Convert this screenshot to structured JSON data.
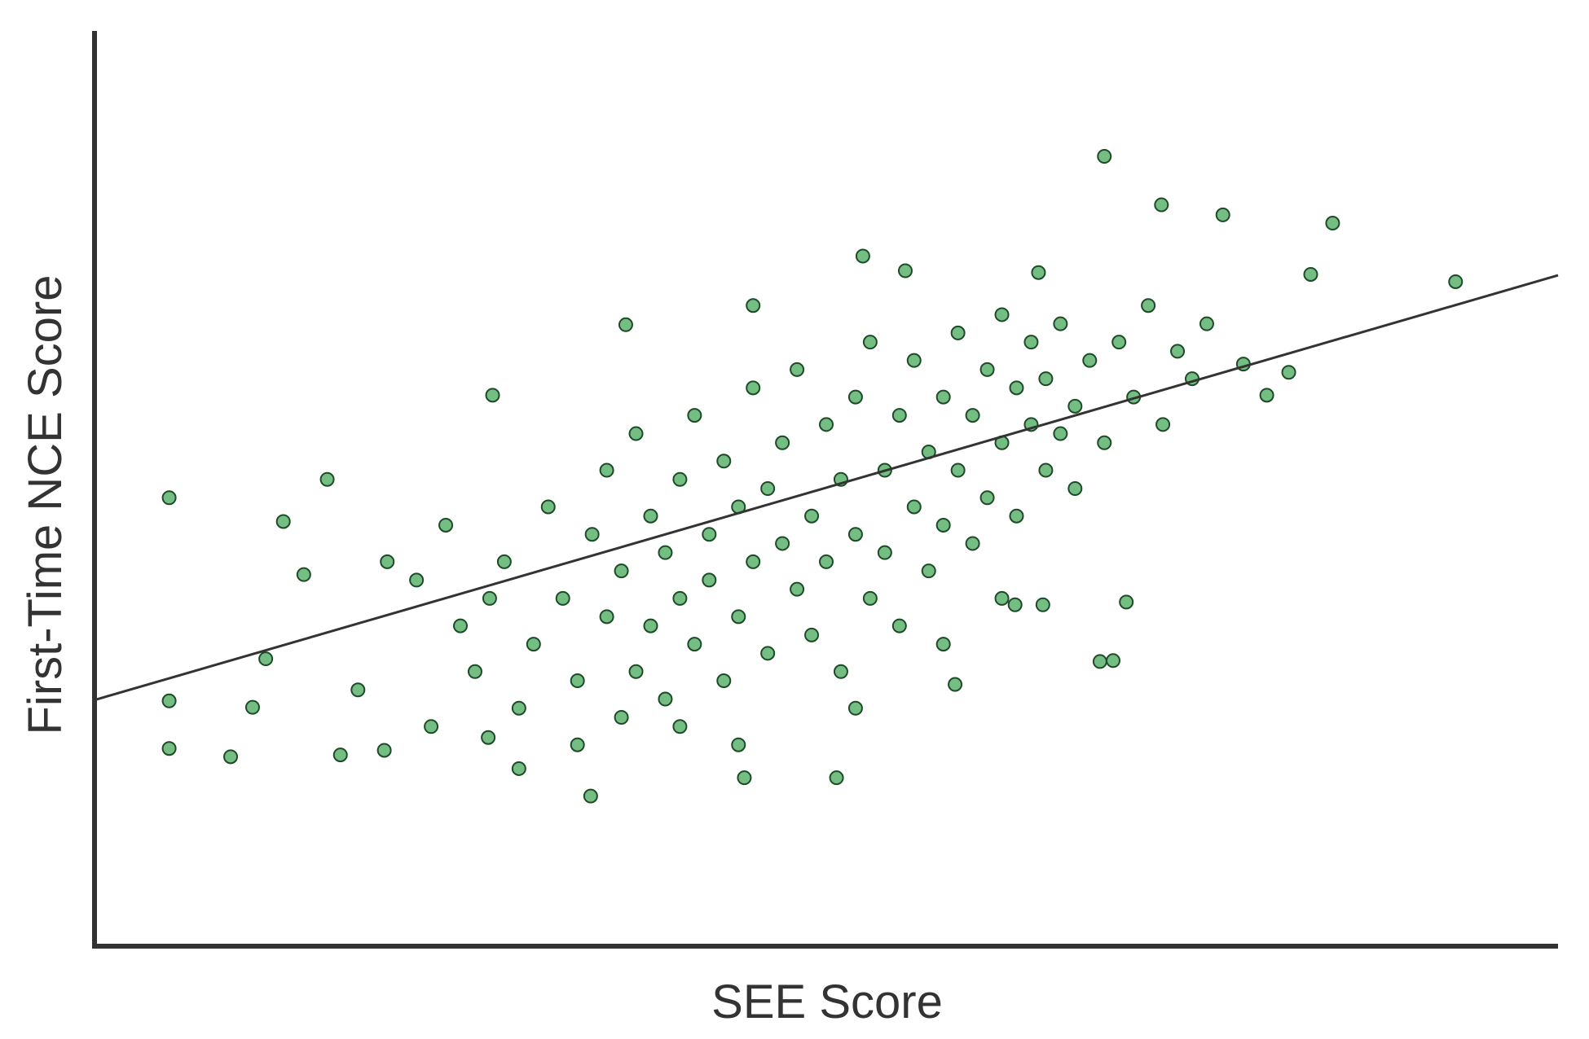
{
  "chart_data": {
    "type": "scatter",
    "x_label": "SEE Score",
    "y_label": "First-Time NCE Score",
    "xlim": [
      0,
      100
    ],
    "ylim": [
      0,
      100
    ],
    "color": "#6dbb7c",
    "edge_color": "#1e4a27",
    "line_color": "#333333",
    "x": [
      5.1,
      5.1,
      5.1,
      9.3,
      10.8,
      11.7,
      12.9,
      15.9,
      14.3,
      16.8,
      19.8,
      33.9,
      44.4,
      50.7,
      69.0,
      72.9,
      77.1,
      84.6,
      93.0,
      83.1,
      81.6,
      80.1,
      78.5,
      68.7,
      69.6,
      70.5,
      58.8,
      52.5,
      55.4,
      64.5,
      45.0,
      36.3,
      27.2,
      29.0,
      26.9,
      62.9,
      64.8,
      28,
      30,
      31,
      32,
      33,
      34,
      35,
      35,
      36,
      37,
      37,
      38,
      38,
      39,
      39,
      40,
      40,
      41,
      41,
      42,
      42,
      43,
      43,
      44,
      44,
      45,
      45,
      46,
      46,
      47,
      47,
      48,
      48,
      49,
      49,
      50,
      50,
      51,
      51,
      52,
      52,
      53,
      53,
      54,
      54,
      55,
      55,
      56,
      56,
      57,
      57,
      58,
      58,
      59,
      59,
      60,
      60,
      61,
      61,
      62,
      62,
      63,
      63,
      64,
      64,
      65,
      65,
      66,
      66,
      67,
      67,
      68,
      69,
      70,
      71,
      72,
      73,
      74,
      75,
      76,
      22,
      24,
      25,
      26,
      20,
      18,
      23,
      27,
      29,
      33,
      36,
      40,
      44,
      52,
      58,
      62
    ],
    "values": [
      49.0,
      26.8,
      21.6,
      20.7,
      26.1,
      31.4,
      46.4,
      51.0,
      40.6,
      20.9,
      21.4,
      16.4,
      18.4,
      18.4,
      86.3,
      81.0,
      79.9,
      79.0,
      72.6,
      73.4,
      62.7,
      60.2,
      63.6,
      31.1,
      31.2,
      37.6,
      28.6,
      75.4,
      73.8,
      73.6,
      70.0,
      67.9,
      60.2,
      19.4,
      22.8,
      37.3,
      37.3,
      42,
      33,
      48,
      38,
      29,
      45,
      52,
      36,
      41,
      30,
      56,
      47,
      35,
      43,
      27,
      51,
      38,
      58,
      33,
      45,
      40,
      53,
      29,
      48,
      36,
      61,
      42,
      50,
      32,
      55,
      44,
      39,
      63,
      47,
      34,
      57,
      42,
      51,
      30,
      60,
      45,
      38,
      66,
      52,
      43,
      58,
      35,
      48,
      64,
      54,
      41,
      60,
      46,
      67,
      52,
      44,
      58,
      63,
      49,
      55,
      69,
      47,
      61,
      57,
      66,
      52,
      62,
      68,
      56,
      59,
      50,
      64,
      55,
      66,
      60,
      70,
      57,
      65,
      62,
      68,
      40,
      46,
      35,
      30,
      42,
      28,
      24,
      38,
      26,
      22,
      25,
      24,
      22,
      26,
      33,
      38
    ],
    "trend_x": [
      0,
      100
    ],
    "trend_y": [
      26.9,
      73.3
    ]
  }
}
